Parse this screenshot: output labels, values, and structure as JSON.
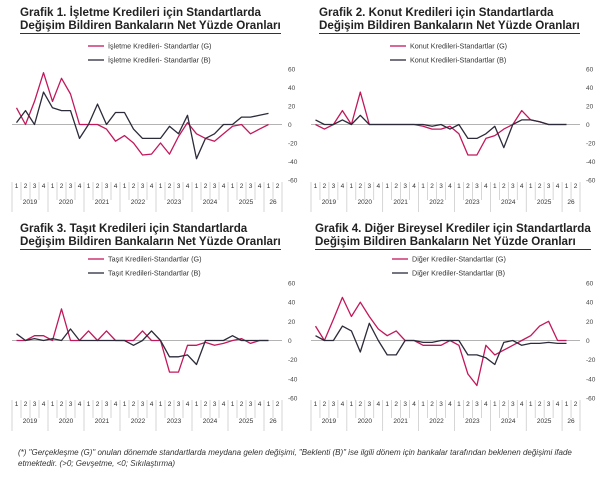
{
  "quarters": [
    "1",
    "2",
    "3",
    "4"
  ],
  "years": [
    "2019",
    "2020",
    "2021",
    "2022",
    "2023",
    "2024",
    "2025",
    "26"
  ],
  "y_ticks": [
    "60",
    "40",
    "20",
    "0",
    "-20",
    "-40",
    "-60"
  ],
  "colors": {
    "realized": "#c2185b",
    "expected": "#2b2b3a"
  },
  "footnote": "(*) \"Gerçekleşme (G)\" onulan dönemde standartlarda meydana gelen değişimi, \"Beklenti (B)\" ise ilgili dönem için bankalar tarafından beklenen değişimi ifade etmektedir. (>0; Gevşetme, <0; Sıkılaştırma)",
  "chart_data": [
    {
      "type": "line",
      "title": "Grafik 1. İşletme Kredileri için Standartlarda Değişim Bildiren Bankaların Net Yüzde Oranları",
      "title_lines": [
        "Grafik 1. İşletme Kredileri için Standartlarda",
        "Değişim Bildiren Bankaların Net Yüzde Oranları"
      ],
      "ylim": [
        -60,
        60
      ],
      "series": [
        {
          "name": "İşletme Kredileri- Standartlar (G)",
          "values": [
            18,
            0,
            25,
            56,
            25,
            50,
            33,
            0,
            0,
            0,
            -5,
            -18,
            -12,
            -20,
            -33,
            -32,
            -20,
            -32,
            -13,
            2,
            -10,
            -15,
            -18,
            -10,
            -2,
            0,
            -10,
            -5,
            0,
            null
          ]
        },
        {
          "name": "İşletme Kredileri- Standartlar (B)",
          "values": [
            2,
            15,
            0,
            35,
            18,
            15,
            15,
            -15,
            0,
            22,
            0,
            13,
            13,
            -5,
            -15,
            -15,
            -15,
            -2,
            -10,
            10,
            -37,
            -15,
            -10,
            0,
            0,
            8,
            8,
            10,
            12,
            null
          ]
        }
      ]
    },
    {
      "type": "line",
      "title": "Grafik 2. Konut Kredileri için Standartlarda Değişim Bildiren Bankaların Net Yüzde Oranları",
      "title_lines": [
        "Grafik 2. Konut Kredileri için Standartlarda",
        "Değişim Bildiren Bankaların Net Yüzde Oranları"
      ],
      "ylim": [
        -60,
        60
      ],
      "series": [
        {
          "name": "Konut Kredileri-Standartlar (G)",
          "values": [
            0,
            -5,
            0,
            15,
            0,
            35,
            0,
            0,
            0,
            0,
            0,
            0,
            -2,
            -5,
            -5,
            -2,
            -10,
            -33,
            -33,
            -15,
            -12,
            -5,
            0,
            15,
            5,
            3,
            0,
            0,
            0,
            null
          ]
        },
        {
          "name": "Konut Kredileri-Standartlar (B)",
          "values": [
            5,
            0,
            0,
            5,
            0,
            10,
            0,
            0,
            0,
            0,
            0,
            0,
            0,
            -2,
            0,
            -5,
            0,
            -15,
            -15,
            -10,
            -2,
            -25,
            0,
            5,
            5,
            3,
            0,
            0,
            0,
            null
          ]
        }
      ]
    },
    {
      "type": "line",
      "title": "Grafik 3. Taşıt Kredileri için Standartlarda Değişim Bildiren Bankaların Net Yüzde Oranları",
      "title_lines": [
        "Grafik 3. Taşıt Kredileri için Standartlarda",
        "Değişim Bildiren Bankaların Net Yüzde Oranları"
      ],
      "ylim": [
        -60,
        60
      ],
      "series": [
        {
          "name": "Taşıt Kredileri-Standartlar (G)",
          "values": [
            0,
            0,
            5,
            5,
            0,
            33,
            0,
            0,
            10,
            0,
            10,
            0,
            0,
            0,
            10,
            0,
            0,
            -33,
            -33,
            -5,
            -5,
            -2,
            -5,
            -3,
            0,
            2,
            -3,
            0,
            0,
            null
          ]
        },
        {
          "name": "Taşıt Kredileri-Standartlar (B)",
          "values": [
            7,
            0,
            2,
            0,
            2,
            0,
            12,
            0,
            0,
            0,
            0,
            0,
            0,
            -5,
            0,
            10,
            0,
            -17,
            -17,
            -15,
            -25,
            0,
            0,
            0,
            5,
            0,
            0,
            0,
            0,
            null
          ]
        }
      ]
    },
    {
      "type": "line",
      "title": "Grafik 4. Diğer Bireysel Krediler için Standartlarda Değişim Bildiren Bankaların Net Yüzde Oranları",
      "title_lines": [
        "Grafik 4. Diğer Bireysel Krediler için Standartlarda",
        "Değişim Bildiren Bankaların Net Yüzde Oranları"
      ],
      "ylim": [
        -60,
        60
      ],
      "series": [
        {
          "name": "Diğer Krediler-Standartlar (G)",
          "values": [
            15,
            0,
            22,
            45,
            25,
            40,
            25,
            12,
            5,
            10,
            0,
            0,
            -5,
            -5,
            -5,
            0,
            -5,
            -35,
            -47,
            -5,
            -15,
            -10,
            -5,
            0,
            5,
            15,
            20,
            0,
            0,
            null
          ]
        },
        {
          "name": "Diğer Krediler-Standartlar (B)",
          "values": [
            5,
            0,
            0,
            15,
            10,
            -12,
            18,
            0,
            -15,
            -15,
            0,
            0,
            -2,
            -2,
            0,
            0,
            0,
            -15,
            -15,
            -18,
            -25,
            -2,
            0,
            -5,
            -3,
            -3,
            -2,
            -3,
            -3,
            null
          ]
        }
      ]
    }
  ]
}
